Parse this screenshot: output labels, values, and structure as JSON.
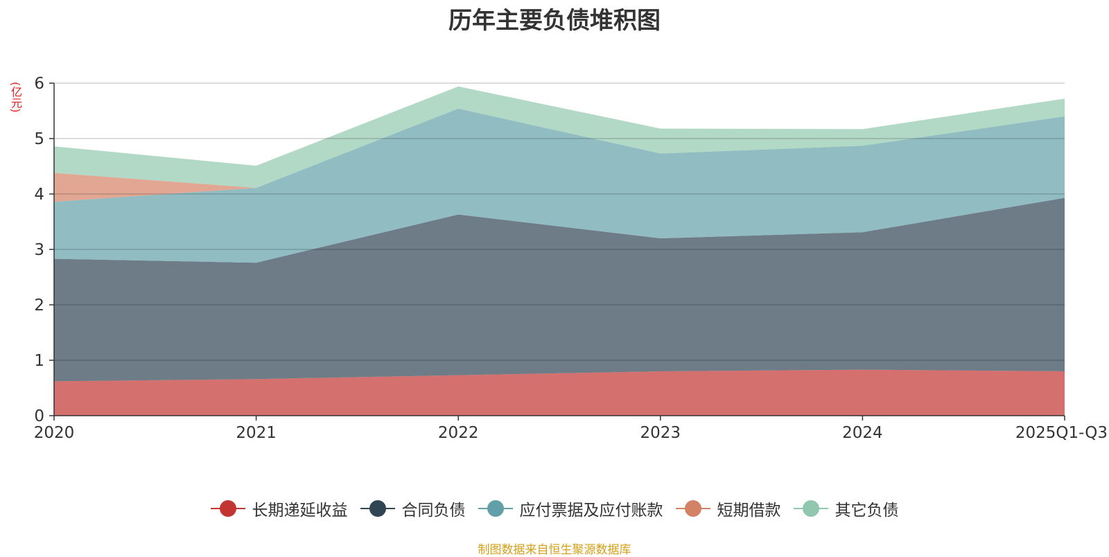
{
  "chart_data": {
    "type": "area",
    "title": "历年主要负债堆积图",
    "unit_label": "(亿元)",
    "source_note": "制图数据来自恒生聚源数据库",
    "categories": [
      "2020",
      "2021",
      "2022",
      "2023",
      "2024",
      "2025Q1-Q3"
    ],
    "ylim": [
      0,
      6
    ],
    "yticks": [
      "0",
      "1",
      "2",
      "3",
      "4",
      "5",
      "6"
    ],
    "stacked": true,
    "grid": true,
    "legend_position": "bottom",
    "series": [
      {
        "name": "长期递延收益",
        "color": "#c23531",
        "values": [
          0.62,
          0.66,
          0.73,
          0.8,
          0.83,
          0.8
        ]
      },
      {
        "name": "合同负债",
        "color": "#2f4554",
        "values": [
          2.21,
          2.1,
          2.9,
          2.4,
          2.48,
          3.13
        ]
      },
      {
        "name": "应付票据及应付账款",
        "color": "#61a0a8",
        "values": [
          1.03,
          1.35,
          1.91,
          1.53,
          1.56,
          1.47
        ]
      },
      {
        "name": "短期借款",
        "color": "#d48265",
        "values": [
          0.52,
          0.0,
          0.0,
          0.0,
          0.0,
          0.0
        ]
      },
      {
        "name": "其它负债",
        "color": "#91c7ae",
        "values": [
          0.48,
          0.4,
          0.4,
          0.45,
          0.3,
          0.32
        ]
      }
    ]
  }
}
